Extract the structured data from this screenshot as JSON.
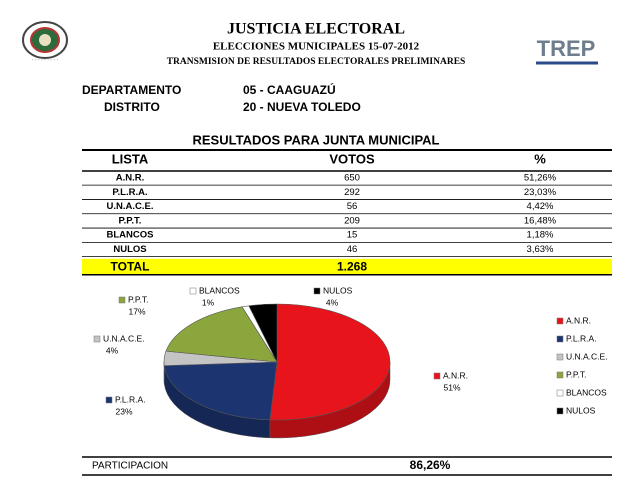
{
  "header": {
    "title": "JUSTICIA ELECTORAL",
    "subtitle": "ELECCIONES MUNICIPALES 15-07-2012",
    "subtitle2": "TRANSMISION DE RESULTADOS ELECTORALES PRELIMINARES",
    "logo": "TREP"
  },
  "info": {
    "departamento_label": "DEPARTAMENTO",
    "departamento": "05 - CAAGUAZÚ",
    "distrito_label": "DISTRITO",
    "distrito": "20 - NUEVA TOLEDO"
  },
  "table": {
    "title": "RESULTADOS PARA JUNTA MUNICIPAL",
    "columns": [
      "LISTA",
      "VOTOS",
      "%"
    ],
    "rows": [
      [
        "A.N.R.",
        "650",
        "51,26%"
      ],
      [
        "P.L.R.A.",
        "292",
        "23,03%"
      ],
      [
        "U.N.A.C.E.",
        "56",
        "4,42%"
      ],
      [
        "P.P.T.",
        "209",
        "16,48%"
      ],
      [
        "BLANCOS",
        "15",
        "1,18%"
      ],
      [
        "NULOS",
        "46",
        "3,63%"
      ]
    ],
    "total": {
      "label": "TOTAL",
      "votos": "1.268"
    }
  },
  "chart_data": {
    "type": "pie",
    "categories": [
      "A.N.R.",
      "P.L.R.A.",
      "U.N.A.C.E.",
      "P.P.T.",
      "BLANCOS",
      "NULOS"
    ],
    "values": [
      51,
      23,
      4,
      17,
      1,
      4
    ],
    "value_labels": [
      "51%",
      "23%",
      "4%",
      "17%",
      "1%",
      "4%"
    ],
    "colors": [
      "#e8141b",
      "#1c3470",
      "#c4c4c4",
      "#8aa63c",
      "#ffffff",
      "#000000"
    ]
  },
  "participation": {
    "label": "PARTICIPACION",
    "value": "86,26%"
  }
}
